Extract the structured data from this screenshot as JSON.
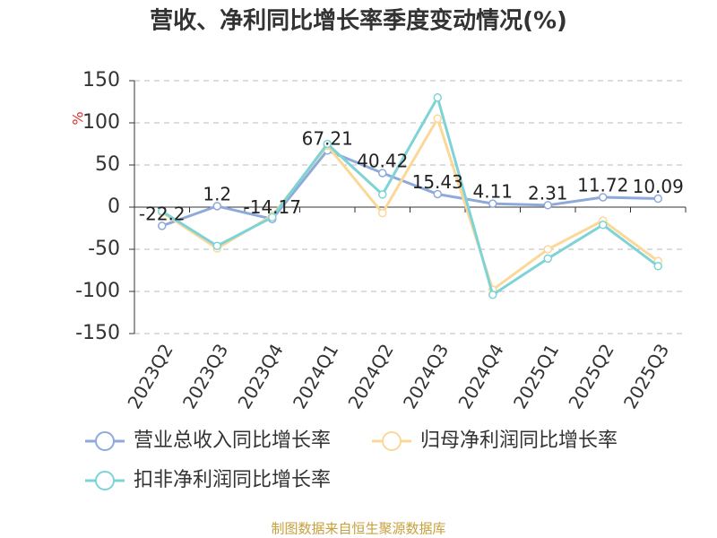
{
  "chart_data": {
    "type": "line",
    "title": "营收、净利同比增长率季度变动情况(%)",
    "ylabel": "%",
    "categories": [
      "2023Q2",
      "2023Q3",
      "2023Q4",
      "2024Q1",
      "2024Q2",
      "2024Q3",
      "2024Q4",
      "2025Q1",
      "2025Q2",
      "2025Q3"
    ],
    "series": [
      {
        "name": "营业总收入同比增长率",
        "color": "#8eaadb",
        "values": [
          -22.2,
          1.2,
          -14.17,
          67.21,
          40.42,
          15.43,
          4.11,
          2.31,
          11.72,
          10.09
        ],
        "labels": true
      },
      {
        "name": "归母净利润同比增长率",
        "color": "#fcd898",
        "values": [
          -6,
          -49,
          -10,
          73,
          -7,
          105,
          -98,
          -50,
          -16,
          -64
        ]
      },
      {
        "name": "扣非净利润同比增长率",
        "color": "#7ed3d6",
        "values": [
          -5,
          -46,
          -12,
          75,
          15,
          130,
          -104,
          -61,
          -21,
          -70
        ]
      }
    ],
    "ylim": [
      -150,
      150
    ],
    "yticks": [
      -150,
      -100,
      -50,
      0,
      50,
      100,
      150
    ],
    "grid": true,
    "source": "制图数据来自恒生聚源数据库"
  }
}
